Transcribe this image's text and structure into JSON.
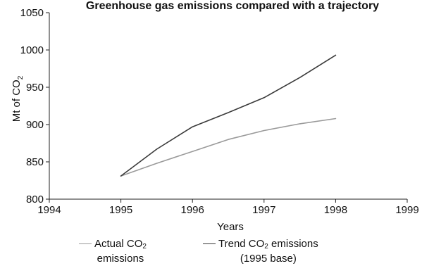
{
  "chart_data": {
    "type": "line",
    "title": "Greenhouse gas emissions compared with a trajectory",
    "xlabel": "Years",
    "ylabel": "Mt of CO2",
    "ylabel_main": "Mt of CO",
    "ylabel_sub": "2",
    "xlim": [
      1994,
      1999
    ],
    "ylim": [
      800,
      1050
    ],
    "x_ticks": [
      "1994",
      "1995",
      "1996",
      "1997",
      "1998",
      "1999"
    ],
    "y_ticks": [
      "800",
      "850",
      "900",
      "950",
      "1000",
      "1050"
    ],
    "grid": false,
    "legend_position": "bottom",
    "series": [
      {
        "name": "Actual CO2 emissions",
        "label_pre": "Actual CO",
        "label_sub": "2",
        "label_post": "",
        "label_line2": "emissions",
        "color": "#9a9a9a",
        "x": [
          1995,
          1995.5,
          1996,
          1996.5,
          1997,
          1997.5,
          1998
        ],
        "y": [
          831,
          848,
          864,
          880,
          892,
          901,
          908
        ]
      },
      {
        "name": "Trend CO2 emissions (1995 base)",
        "label_pre": "Trend CO",
        "label_sub": "2",
        "label_post": " emissions",
        "label_line2": "(1995 base)",
        "color": "#3a3a3a",
        "x": [
          1995,
          1995.5,
          1996,
          1996.5,
          1997,
          1997.5,
          1998
        ],
        "y": [
          831,
          867,
          897,
          916,
          936,
          963,
          993
        ]
      }
    ]
  }
}
